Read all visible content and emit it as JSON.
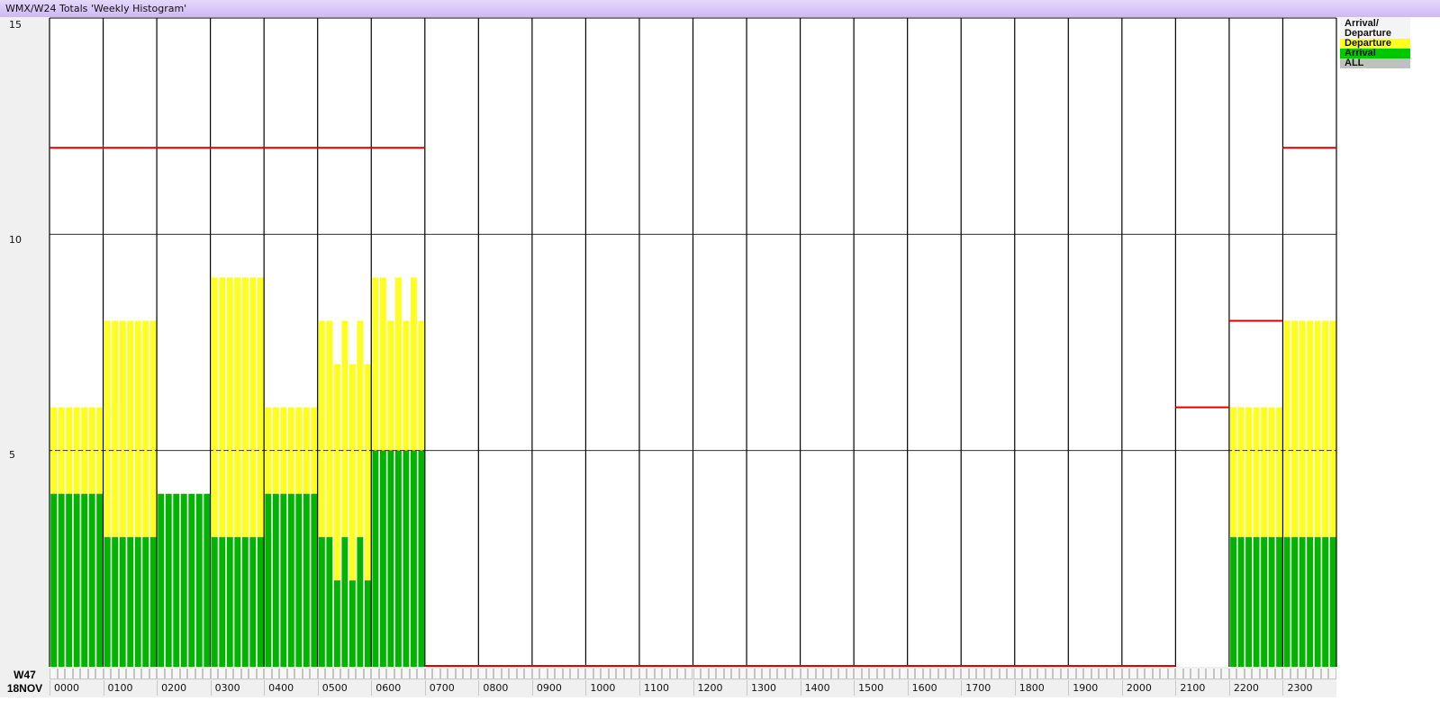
{
  "window": {
    "title": "WMX/W24 Totals 'Weekly Histogram'"
  },
  "chart_data": {
    "type": "bar",
    "stacked": true,
    "ylim": [
      0,
      15
    ],
    "yticks": [
      "5",
      "10",
      "15"
    ],
    "grid": true,
    "week_label": "W47",
    "date_label": "18NOV",
    "categories": [
      "0000",
      "0100",
      "0200",
      "0300",
      "0400",
      "0500",
      "0600",
      "0700",
      "0800",
      "0900",
      "1000",
      "1100",
      "1200",
      "1300",
      "1400",
      "1500",
      "1600",
      "1700",
      "1800",
      "1900",
      "2000",
      "2100",
      "2200",
      "2300"
    ],
    "bars_per_hour": 7,
    "series": [
      {
        "name": "Arrival",
        "color": "#00b400",
        "values": [
          [
            4,
            4,
            4,
            4,
            4,
            4,
            4
          ],
          [
            3,
            3,
            3,
            3,
            3,
            3,
            3
          ],
          [
            4,
            4,
            4,
            4,
            4,
            4,
            4
          ],
          [
            3,
            3,
            3,
            3,
            3,
            3,
            3
          ],
          [
            4,
            4,
            4,
            4,
            4,
            4,
            4
          ],
          [
            3,
            3,
            2,
            3,
            2,
            3,
            2
          ],
          [
            5,
            5,
            5,
            5,
            5,
            5,
            5
          ],
          [
            0,
            0,
            0,
            0,
            0,
            0,
            0
          ],
          [
            0,
            0,
            0,
            0,
            0,
            0,
            0
          ],
          [
            0,
            0,
            0,
            0,
            0,
            0,
            0
          ],
          [
            0,
            0,
            0,
            0,
            0,
            0,
            0
          ],
          [
            0,
            0,
            0,
            0,
            0,
            0,
            0
          ],
          [
            0,
            0,
            0,
            0,
            0,
            0,
            0
          ],
          [
            0,
            0,
            0,
            0,
            0,
            0,
            0
          ],
          [
            0,
            0,
            0,
            0,
            0,
            0,
            0
          ],
          [
            0,
            0,
            0,
            0,
            0,
            0,
            0
          ],
          [
            0,
            0,
            0,
            0,
            0,
            0,
            0
          ],
          [
            0,
            0,
            0,
            0,
            0,
            0,
            0
          ],
          [
            0,
            0,
            0,
            0,
            0,
            0,
            0
          ],
          [
            0,
            0,
            0,
            0,
            0,
            0,
            0
          ],
          [
            0,
            0,
            0,
            0,
            0,
            0,
            0
          ],
          [
            0,
            0,
            0,
            0,
            0,
            0,
            0
          ],
          [
            3,
            3,
            3,
            3,
            3,
            3,
            3
          ],
          [
            3,
            3,
            3,
            3,
            3,
            3,
            3
          ]
        ]
      },
      {
        "name": "Departure",
        "color": "#ffff1e",
        "values": [
          [
            2,
            2,
            2,
            2,
            2,
            2,
            2
          ],
          [
            5,
            5,
            5,
            5,
            5,
            5,
            5
          ],
          [
            0,
            0,
            0,
            0,
            0,
            0,
            0
          ],
          [
            6,
            6,
            6,
            6,
            6,
            6,
            6
          ],
          [
            2,
            2,
            2,
            2,
            2,
            2,
            2
          ],
          [
            5,
            5,
            5,
            5,
            5,
            5,
            5
          ],
          [
            4,
            4,
            3,
            4,
            3,
            4,
            3
          ],
          [
            0,
            0,
            0,
            0,
            0,
            0,
            0
          ],
          [
            0,
            0,
            0,
            0,
            0,
            0,
            0
          ],
          [
            0,
            0,
            0,
            0,
            0,
            0,
            0
          ],
          [
            0,
            0,
            0,
            0,
            0,
            0,
            0
          ],
          [
            0,
            0,
            0,
            0,
            0,
            0,
            0
          ],
          [
            0,
            0,
            0,
            0,
            0,
            0,
            0
          ],
          [
            0,
            0,
            0,
            0,
            0,
            0,
            0
          ],
          [
            0,
            0,
            0,
            0,
            0,
            0,
            0
          ],
          [
            0,
            0,
            0,
            0,
            0,
            0,
            0
          ],
          [
            0,
            0,
            0,
            0,
            0,
            0,
            0
          ],
          [
            0,
            0,
            0,
            0,
            0,
            0,
            0
          ],
          [
            0,
            0,
            0,
            0,
            0,
            0,
            0
          ],
          [
            0,
            0,
            0,
            0,
            0,
            0,
            0
          ],
          [
            0,
            0,
            0,
            0,
            0,
            0,
            0
          ],
          [
            0,
            0,
            0,
            0,
            0,
            0,
            0
          ],
          [
            3,
            3,
            3,
            3,
            3,
            3,
            3
          ],
          [
            5,
            5,
            5,
            5,
            5,
            5,
            5
          ]
        ]
      }
    ],
    "capacity": {
      "color": "#e00000",
      "values": [
        12,
        12,
        12,
        12,
        12,
        12,
        12,
        0,
        0,
        0,
        0,
        0,
        0,
        0,
        0,
        0,
        0,
        0,
        0,
        0,
        0,
        6,
        8,
        12
      ]
    },
    "reference_line": 5,
    "legend": {
      "placement": "right",
      "header": "Arrival/ Departure",
      "items": [
        {
          "label": "Departure",
          "color": "#ffff1e"
        },
        {
          "label": "Arrival",
          "color": "#00c800"
        },
        {
          "label": "ALL",
          "color": "#c0c0c0"
        }
      ]
    }
  }
}
